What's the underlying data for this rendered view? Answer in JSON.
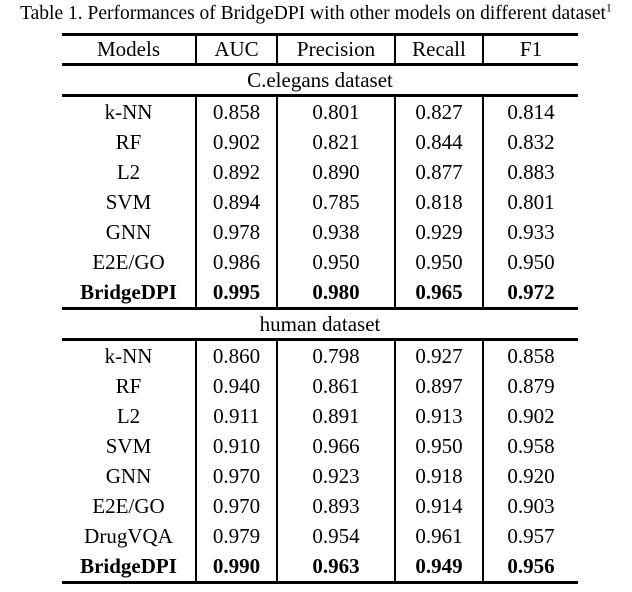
{
  "title": {
    "text": "Table 1. Performances of BridgeDPI with other models on different dataset",
    "superscript": "1"
  },
  "table": {
    "columns": [
      "Models",
      "AUC",
      "Precision",
      "Recall",
      "F1"
    ],
    "sections": [
      {
        "label": "C.elegans dataset",
        "rows": [
          {
            "model": "k-NN",
            "values": [
              "0.858",
              "0.801",
              "0.827",
              "0.814"
            ],
            "bold": false
          },
          {
            "model": "RF",
            "values": [
              "0.902",
              "0.821",
              "0.844",
              "0.832"
            ],
            "bold": false
          },
          {
            "model": "L2",
            "values": [
              "0.892",
              "0.890",
              "0.877",
              "0.883"
            ],
            "bold": false
          },
          {
            "model": "SVM",
            "values": [
              "0.894",
              "0.785",
              "0.818",
              "0.801"
            ],
            "bold": false
          },
          {
            "model": "GNN",
            "values": [
              "0.978",
              "0.938",
              "0.929",
              "0.933"
            ],
            "bold": false
          },
          {
            "model": "E2E/GO",
            "values": [
              "0.986",
              "0.950",
              "0.950",
              "0.950"
            ],
            "bold": false
          },
          {
            "model": "BridgeDPI",
            "values": [
              "0.995",
              "0.980",
              "0.965",
              "0.972"
            ],
            "bold": true
          }
        ]
      },
      {
        "label": "human dataset",
        "rows": [
          {
            "model": "k-NN",
            "values": [
              "0.860",
              "0.798",
              "0.927",
              "0.858"
            ],
            "bold": false
          },
          {
            "model": "RF",
            "values": [
              "0.940",
              "0.861",
              "0.897",
              "0.879"
            ],
            "bold": false
          },
          {
            "model": "L2",
            "values": [
              "0.911",
              "0.891",
              "0.913",
              "0.902"
            ],
            "bold": false
          },
          {
            "model": "SVM",
            "values": [
              "0.910",
              "0.966",
              "0.950",
              "0.958"
            ],
            "bold": false
          },
          {
            "model": "GNN",
            "values": [
              "0.970",
              "0.923",
              "0.918",
              "0.920"
            ],
            "bold": false
          },
          {
            "model": "E2E/GO",
            "values": [
              "0.970",
              "0.893",
              "0.914",
              "0.903"
            ],
            "bold": false
          },
          {
            "model": "DrugVQA",
            "values": [
              "0.979",
              "0.954",
              "0.961",
              "0.957"
            ],
            "bold": false
          },
          {
            "model": "BridgeDPI",
            "values": [
              "0.990",
              "0.963",
              "0.949",
              "0.956"
            ],
            "bold": true
          }
        ]
      }
    ]
  },
  "colors": {
    "text": "#000000",
    "background": "#ffffff",
    "rule": "#000000"
  }
}
